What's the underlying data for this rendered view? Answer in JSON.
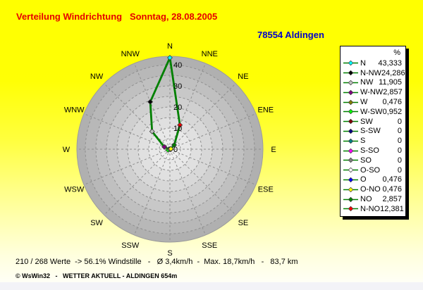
{
  "header": {
    "title": "Verteilung Windrichtung   Sonntag, 28.08.2005",
    "title_color": "#e60000",
    "station": "78554 Aldingen",
    "station_color": "#0000cc"
  },
  "chart_data": {
    "type": "radar",
    "title": "Verteilung Windrichtung",
    "subtitle": "Sonntag, 28.08.2005",
    "categories": [
      "N",
      "NNE",
      "NE",
      "ENE",
      "E",
      "ESE",
      "SE",
      "SSE",
      "S",
      "SSW",
      "SW",
      "WSW",
      "W",
      "WNW",
      "NW",
      "NNW"
    ],
    "values": [
      43.333,
      12.381,
      2.857,
      0.476,
      0.476,
      0,
      0,
      0,
      0,
      0,
      0,
      0.952,
      0.476,
      2.857,
      11.905,
      24.286
    ],
    "marker_colors": [
      "#00ffff",
      "#ff0000",
      "#008000",
      "#ffff00",
      "#0000ff",
      "#ffffff",
      "#808080",
      "#ff00ff",
      "#008080",
      "#000080",
      "#800000",
      "#00ff00",
      "#808000",
      "#800080",
      "#c0c0c0",
      "#000000"
    ],
    "radial_ticks": [
      0,
      10,
      20,
      30,
      40
    ],
    "ring_step": 5,
    "rmax": 44,
    "line_color": "#008000",
    "grid_color": "#8f8f8f",
    "disk_outer_gray": "#b0b0b0",
    "disk_inner_gray": "#f0f0f0",
    "label_color": "#000000",
    "legend_position": "right"
  },
  "legend": {
    "header": "%",
    "line_color": "#008000",
    "rows": [
      {
        "label": "N",
        "value": "43,333",
        "color": "#00ffff"
      },
      {
        "label": "N-NW",
        "value": "24,286",
        "color": "#000000"
      },
      {
        "label": "NW",
        "value": "11,905",
        "color": "#c0c0c0"
      },
      {
        "label": "W-NW",
        "value": "2,857",
        "color": "#800080"
      },
      {
        "label": "W",
        "value": "0,476",
        "color": "#808000"
      },
      {
        "label": "W-SW",
        "value": "0,952",
        "color": "#00ff00"
      },
      {
        "label": "SW",
        "value": "0",
        "color": "#800000"
      },
      {
        "label": "S-SW",
        "value": "0",
        "color": "#000080"
      },
      {
        "label": "S",
        "value": "0",
        "color": "#008080"
      },
      {
        "label": "S-SO",
        "value": "0",
        "color": "#ff00ff"
      },
      {
        "label": "SO",
        "value": "0",
        "color": "#808080"
      },
      {
        "label": "O-SO",
        "value": "0",
        "color": "#ffffff"
      },
      {
        "label": "O",
        "value": "0,476",
        "color": "#0000ff"
      },
      {
        "label": "O-NO",
        "value": "0,476",
        "color": "#ffff00"
      },
      {
        "label": "NO",
        "value": "2,857",
        "color": "#008000"
      },
      {
        "label": "N-NO",
        "value": "12,381",
        "color": "#ff0000"
      }
    ]
  },
  "footer": {
    "stats": "210 / 268 Werte  -> 56.1% Windstille   -   Ø 3,4km/h  -  Max. 18,7km/h   -   83,7 km",
    "copyright": "© WsWin32   -   WETTER AKTUELL - ALDINGEN 654m"
  }
}
